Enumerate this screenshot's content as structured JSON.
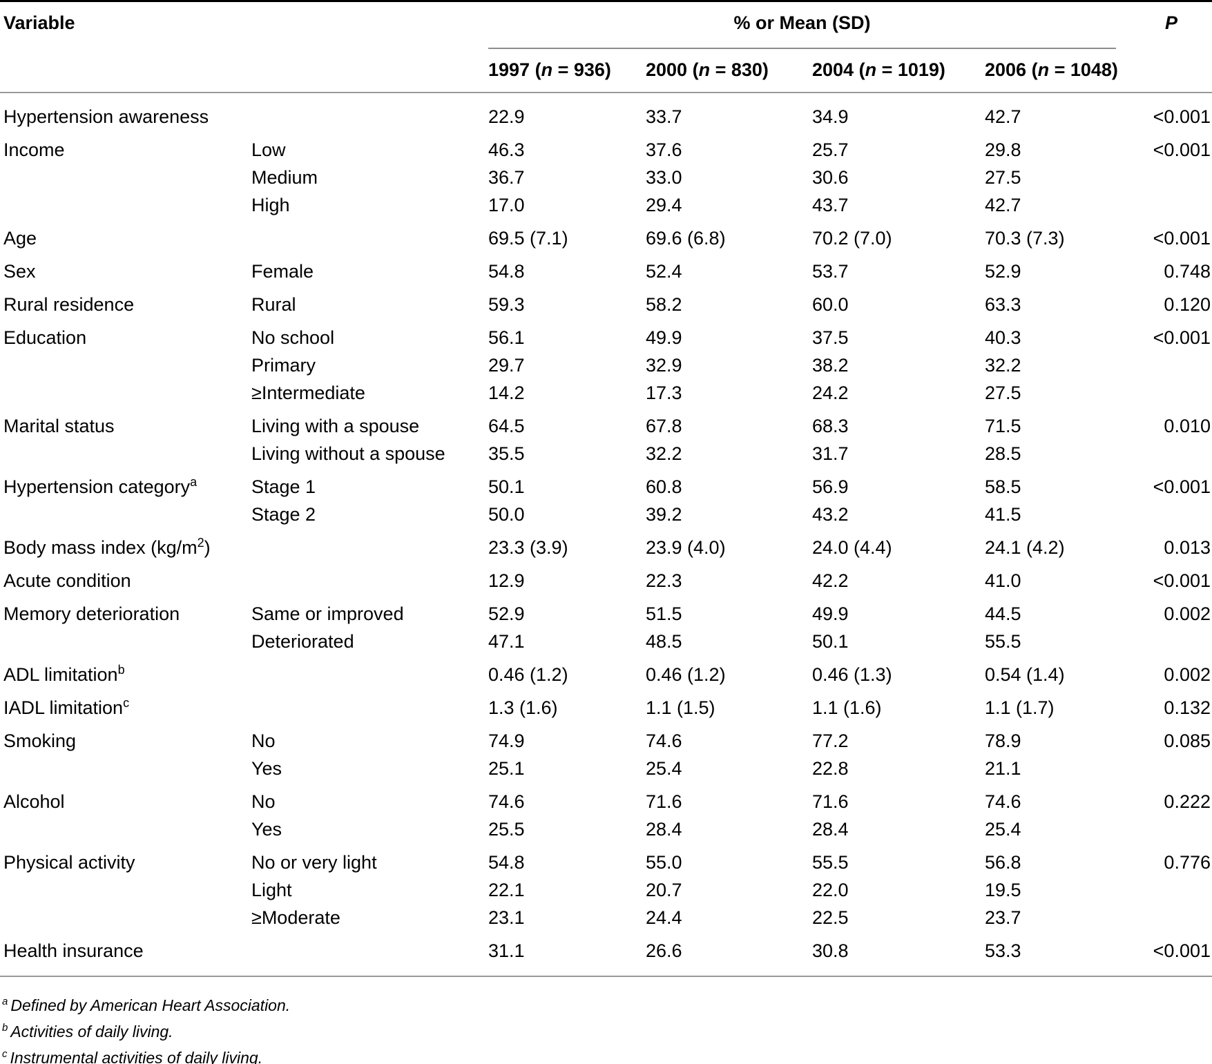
{
  "header": {
    "variable_label": "Variable",
    "spanner_label": "% or Mean (SD)",
    "p_label": "P",
    "year_columns": [
      {
        "year": "1997",
        "n": "936"
      },
      {
        "year": "2000",
        "n": "830"
      },
      {
        "year": "2004",
        "n": "1019"
      },
      {
        "year": "2006",
        "n": "1048"
      }
    ]
  },
  "rows": [
    {
      "variable": "Hypertension awareness",
      "category": "",
      "values": [
        "22.9",
        "33.7",
        "34.9",
        "42.7"
      ],
      "p": "<0.001"
    },
    {
      "variable": "Income",
      "category": "Low",
      "values": [
        "46.3",
        "37.6",
        "25.7",
        "29.8"
      ],
      "p": "<0.001"
    },
    {
      "variable": "",
      "category": "Medium",
      "values": [
        "36.7",
        "33.0",
        "30.6",
        "27.5"
      ],
      "p": ""
    },
    {
      "variable": "",
      "category": "High",
      "values": [
        "17.0",
        "29.4",
        "43.7",
        "42.7"
      ],
      "p": ""
    },
    {
      "variable": "Age",
      "category": "",
      "values": [
        "69.5 (7.1)",
        "69.6 (6.8)",
        "70.2 (7.0)",
        "70.3 (7.3)"
      ],
      "p": "<0.001"
    },
    {
      "variable": "Sex",
      "category": "Female",
      "values": [
        "54.8",
        "52.4",
        "53.7",
        "52.9"
      ],
      "p": "0.748"
    },
    {
      "variable": "Rural residence",
      "category": "Rural",
      "values": [
        "59.3",
        "58.2",
        "60.0",
        "63.3"
      ],
      "p": "0.120"
    },
    {
      "variable": "Education",
      "category": "No school",
      "values": [
        "56.1",
        "49.9",
        "37.5",
        "40.3"
      ],
      "p": "<0.001"
    },
    {
      "variable": "",
      "category": "Primary",
      "values": [
        "29.7",
        "32.9",
        "38.2",
        "32.2"
      ],
      "p": ""
    },
    {
      "variable": "",
      "category": "≥Intermediate",
      "values": [
        "14.2",
        "17.3",
        "24.2",
        "27.5"
      ],
      "p": ""
    },
    {
      "variable": "Marital status",
      "category": "Living with a spouse",
      "values": [
        "64.5",
        "67.8",
        "68.3",
        "71.5"
      ],
      "p": "0.010"
    },
    {
      "variable": "",
      "category": "Living without a spouse",
      "values": [
        "35.5",
        "32.2",
        "31.7",
        "28.5"
      ],
      "p": ""
    },
    {
      "variable": "Hypertension category^{a}",
      "category": "Stage 1",
      "values": [
        "50.1",
        "60.8",
        "56.9",
        "58.5"
      ],
      "p": "<0.001"
    },
    {
      "variable": "",
      "category": "Stage 2",
      "values": [
        "50.0",
        "39.2",
        "43.2",
        "41.5"
      ],
      "p": ""
    },
    {
      "variable": "Body mass index (kg/m^{2})",
      "category": "",
      "values": [
        "23.3 (3.9)",
        "23.9 (4.0)",
        "24.0 (4.4)",
        "24.1 (4.2)"
      ],
      "p": "0.013"
    },
    {
      "variable": "Acute condition",
      "category": "",
      "values": [
        "12.9",
        "22.3",
        "42.2",
        "41.0"
      ],
      "p": "<0.001"
    },
    {
      "variable": "Memory deterioration",
      "category": "Same or improved",
      "values": [
        "52.9",
        "51.5",
        "49.9",
        "44.5"
      ],
      "p": "0.002"
    },
    {
      "variable": "",
      "category": "Deteriorated",
      "values": [
        "47.1",
        "48.5",
        "50.1",
        "55.5"
      ],
      "p": ""
    },
    {
      "variable": "ADL limitation^{b}",
      "category": "",
      "values": [
        "0.46 (1.2)",
        "0.46 (1.2)",
        "0.46 (1.3)",
        "0.54 (1.4)"
      ],
      "p": "0.002"
    },
    {
      "variable": "IADL limitation^{c}",
      "category": "",
      "values": [
        "1.3 (1.6)",
        "1.1 (1.5)",
        "1.1 (1.6)",
        "1.1 (1.7)"
      ],
      "p": "0.132"
    },
    {
      "variable": "Smoking",
      "category": "No",
      "values": [
        "74.9",
        "74.6",
        "77.2",
        "78.9"
      ],
      "p": "0.085"
    },
    {
      "variable": "",
      "category": "Yes",
      "values": [
        "25.1",
        "25.4",
        "22.8",
        "21.1"
      ],
      "p": ""
    },
    {
      "variable": "Alcohol",
      "category": "No",
      "values": [
        "74.6",
        "71.6",
        "71.6",
        "74.6"
      ],
      "p": "0.222"
    },
    {
      "variable": "",
      "category": "Yes",
      "values": [
        "25.5",
        "28.4",
        "28.4",
        "25.4"
      ],
      "p": ""
    },
    {
      "variable": "Physical activity",
      "category": "No or very light",
      "values": [
        "54.8",
        "55.0",
        "55.5",
        "56.8"
      ],
      "p": "0.776"
    },
    {
      "variable": "",
      "category": "Light",
      "values": [
        "22.1",
        "20.7",
        "22.0",
        "19.5"
      ],
      "p": ""
    },
    {
      "variable": "",
      "category": "≥Moderate",
      "values": [
        "23.1",
        "24.4",
        "22.5",
        "23.7"
      ],
      "p": ""
    },
    {
      "variable": "Health insurance",
      "category": "",
      "values": [
        "31.1",
        "26.6",
        "30.8",
        "53.3"
      ],
      "p": "<0.001"
    }
  ],
  "footnotes": [
    {
      "sup": "a",
      "text": "Defined by American Heart Association."
    },
    {
      "sup": "b",
      "text": "Activities of daily living."
    },
    {
      "sup": "c",
      "text": "Instrumental activities of daily living."
    }
  ]
}
